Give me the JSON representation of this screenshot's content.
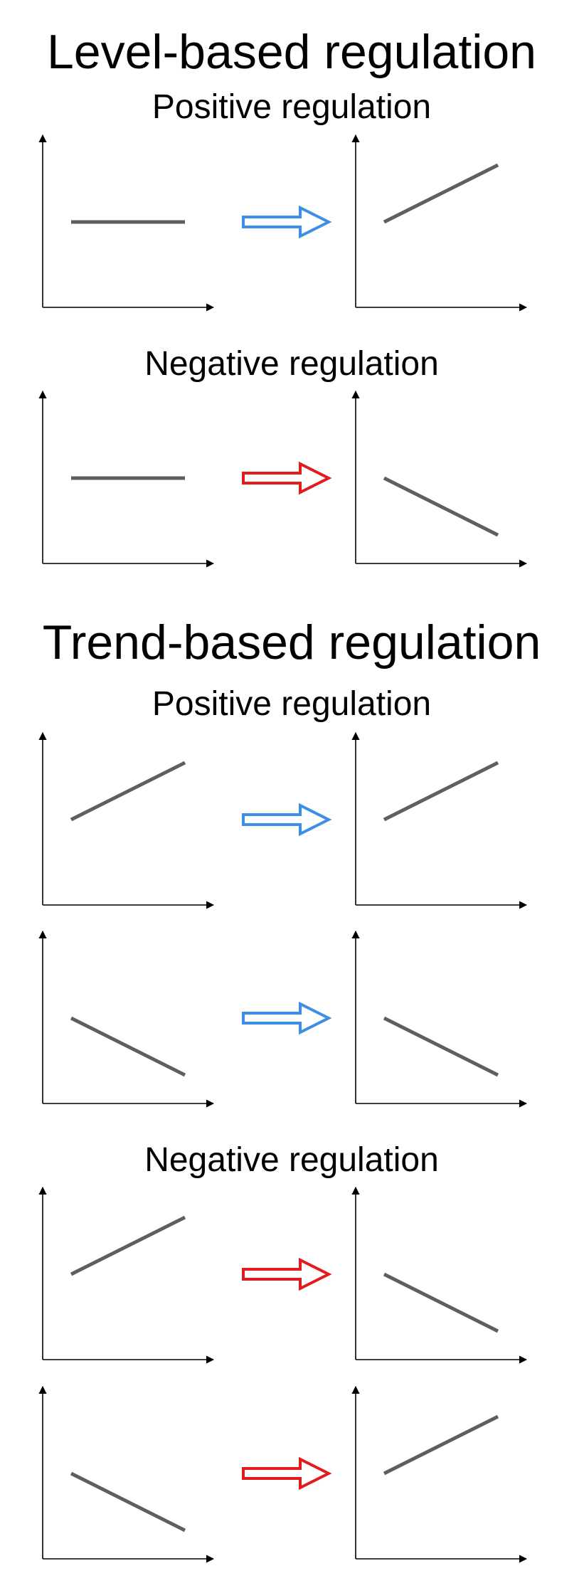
{
  "colors": {
    "axis": "#000000",
    "trend_line": "#5f5f5f",
    "positive_arrow": "#3d8ee6",
    "negative_arrow": "#e21c1c"
  },
  "icons": {
    "positive_arrow": "hollow-right-arrow-icon",
    "negative_arrow": "hollow-right-arrow-icon"
  },
  "sections": [
    {
      "title": "Level-based regulation",
      "groups": [
        {
          "title": "Positive regulation",
          "polarity": "positive",
          "rows": [
            {
              "input_trend": "flat",
              "output_trend": "increasing"
            }
          ]
        },
        {
          "title": "Negative regulation",
          "polarity": "negative",
          "rows": [
            {
              "input_trend": "flat",
              "output_trend": "decreasing"
            }
          ]
        }
      ]
    },
    {
      "title": "Trend-based regulation",
      "groups": [
        {
          "title": "Positive regulation",
          "polarity": "positive",
          "rows": [
            {
              "input_trend": "increasing",
              "output_trend": "increasing"
            },
            {
              "input_trend": "decreasing",
              "output_trend": "decreasing"
            }
          ]
        },
        {
          "title": "Negative regulation",
          "polarity": "negative",
          "rows": [
            {
              "input_trend": "increasing",
              "output_trend": "decreasing"
            },
            {
              "input_trend": "decreasing",
              "output_trend": "increasing"
            }
          ]
        }
      ]
    }
  ]
}
